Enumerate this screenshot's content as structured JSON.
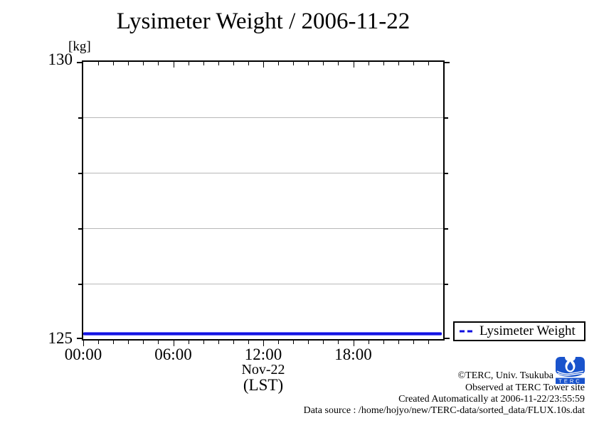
{
  "title": "Lysimeter Weight / 2006-11-22",
  "y_unit_label": "[kg]",
  "y_axis": {
    "tick_labels": [
      "130",
      "125"
    ]
  },
  "x_axis": {
    "tick_labels": [
      "00:00",
      "06:00",
      "12:00",
      "18:00"
    ],
    "label_line1": "Nov-22",
    "label_line2": "(LST)"
  },
  "legend": {
    "label": "Lysimeter Weight"
  },
  "footer": {
    "copyright": "©TERC, Univ. Tsukuba",
    "observed": "Observed at TERC Tower site",
    "created": "Created Automatically at 2006-11-22/23:55:59",
    "data_source": "Data source : /home/hojyo/new/TERC-data/sorted_data/FLUX.10s.dat",
    "logo_text": "TERC"
  },
  "colors": {
    "series": "#0d0de0",
    "grid": "#b8b8b8",
    "axis": "#000000",
    "logo_blue": "#1953cc"
  },
  "chart_data": {
    "type": "line",
    "title": "Lysimeter Weight / 2006-11-22",
    "xlabel": "Nov-22 (LST)",
    "ylabel": "[kg]",
    "x_range_hours": [
      0,
      24
    ],
    "ylim": [
      125,
      130
    ],
    "x_major_ticks_hours": [
      0,
      6,
      12,
      18
    ],
    "x_major_tick_labels": [
      "00:00",
      "06:00",
      "12:00",
      "18:00"
    ],
    "x_minor_tick_interval_hours": 1,
    "y_major_tick_values": [
      125,
      130
    ],
    "y_grid_values": [
      126,
      127,
      128,
      129
    ],
    "grid": true,
    "legend_position": "outside-right-bottom",
    "series": [
      {
        "name": "Lysimeter Weight",
        "style": "dashed",
        "color": "#0d0de0",
        "x_hours": [
          0,
          23.9
        ],
        "values": [
          125.1,
          125.1
        ]
      }
    ]
  }
}
